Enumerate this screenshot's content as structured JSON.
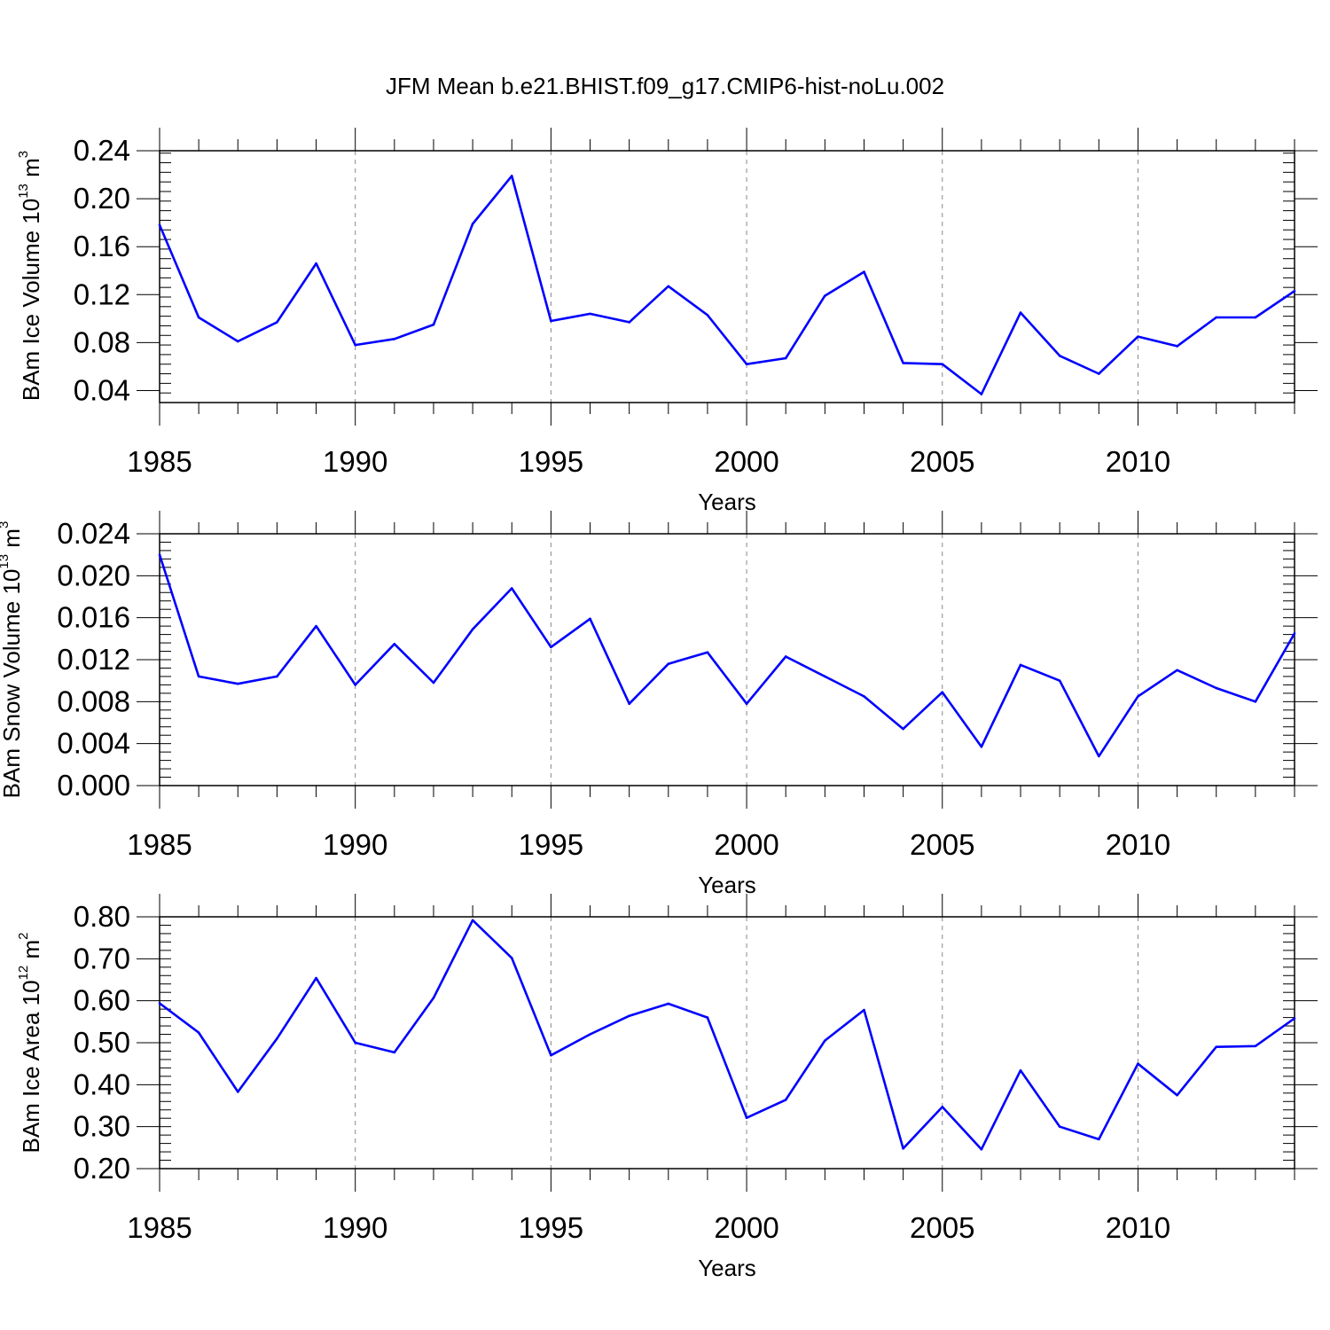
{
  "figure": {
    "title": "JFM Mean b.e21.BHIST.f09_g17.CMIP6-hist-noLu.002"
  },
  "chart_data": [
    {
      "type": "line",
      "title": "JFM Mean b.e21.BHIST.f09_g17.CMIP6-hist-noLu.002",
      "xlabel": "Years",
      "ylabel": {
        "prefix": "BAm Ice Volume 10",
        "exponent": "13",
        "unit_base": " m",
        "unit_exponent": "3"
      },
      "xlim": [
        1985,
        2014
      ],
      "ylim": [
        0.03,
        0.24
      ],
      "x_ticks": [
        1985,
        1990,
        1995,
        2000,
        2005,
        2010
      ],
      "x_tick_labels": [
        "1985",
        "1990",
        "1995",
        "2000",
        "2005",
        "2010"
      ],
      "y_ticks": [
        0.04,
        0.08,
        0.12,
        0.16,
        0.2,
        0.24
      ],
      "y_tick_labels": [
        "0.04",
        "0.08",
        "0.12",
        "0.16",
        "0.20",
        "0.24"
      ],
      "grid": "vertical dashed at major x ticks",
      "line_color": "#0000ff",
      "series": [
        {
          "name": "BAm Ice Volume",
          "x": [
            1985,
            1986,
            1987,
            1988,
            1989,
            1990,
            1991,
            1992,
            1993,
            1994,
            1995,
            1996,
            1997,
            1998,
            1999,
            2000,
            2001,
            2002,
            2003,
            2004,
            2005,
            2006,
            2007,
            2008,
            2009,
            2010,
            2011,
            2012,
            2013,
            2014
          ],
          "values": [
            0.178,
            0.101,
            0.081,
            0.097,
            0.146,
            0.078,
            0.083,
            0.095,
            0.179,
            0.219,
            0.098,
            0.104,
            0.097,
            0.127,
            0.103,
            0.062,
            0.067,
            0.119,
            0.139,
            0.063,
            0.062,
            0.037,
            0.105,
            0.069,
            0.054,
            0.085,
            0.077,
            0.101,
            0.101,
            0.123
          ]
        }
      ]
    },
    {
      "type": "line",
      "title": "",
      "xlabel": "Years",
      "ylabel": {
        "prefix": "BAm Snow Volume 10",
        "exponent": "13",
        "unit_base": " m",
        "unit_exponent": "3"
      },
      "xlim": [
        1985,
        2014
      ],
      "ylim": [
        0.0,
        0.024
      ],
      "x_ticks": [
        1985,
        1990,
        1995,
        2000,
        2005,
        2010
      ],
      "x_tick_labels": [
        "1985",
        "1990",
        "1995",
        "2000",
        "2005",
        "2010"
      ],
      "y_ticks": [
        0.0,
        0.004,
        0.008,
        0.012,
        0.016,
        0.02,
        0.024
      ],
      "y_tick_labels": [
        "0.000",
        "0.004",
        "0.008",
        "0.012",
        "0.016",
        "0.020",
        "0.024"
      ],
      "grid": "vertical dashed at major x ticks",
      "line_color": "#0000ff",
      "series": [
        {
          "name": "BAm Snow Volume",
          "x": [
            1985,
            1986,
            1987,
            1988,
            1989,
            1990,
            1991,
            1992,
            1993,
            1994,
            1995,
            1996,
            1997,
            1998,
            1999,
            2000,
            2001,
            2002,
            2003,
            2004,
            2005,
            2006,
            2007,
            2008,
            2009,
            2010,
            2011,
            2012,
            2013,
            2014
          ],
          "values": [
            0.022,
            0.0104,
            0.0097,
            0.0104,
            0.0152,
            0.0096,
            0.0135,
            0.0098,
            0.0149,
            0.0188,
            0.0132,
            0.0159,
            0.0078,
            0.0116,
            0.0127,
            0.0078,
            0.0123,
            0.0104,
            0.0085,
            0.0054,
            0.0089,
            0.0037,
            0.0115,
            0.01,
            0.0028,
            0.0085,
            0.011,
            0.0093,
            0.008,
            0.0145
          ]
        }
      ]
    },
    {
      "type": "line",
      "title": "",
      "xlabel": "Years",
      "ylabel": {
        "prefix": "BAm Ice Area 10",
        "exponent": "12",
        "unit_base": " m",
        "unit_exponent": "2"
      },
      "xlim": [
        1985,
        2014
      ],
      "ylim": [
        0.2,
        0.8
      ],
      "x_ticks": [
        1985,
        1990,
        1995,
        2000,
        2005,
        2010
      ],
      "x_tick_labels": [
        "1985",
        "1990",
        "1995",
        "2000",
        "2005",
        "2010"
      ],
      "y_ticks": [
        0.2,
        0.3,
        0.4,
        0.5,
        0.6,
        0.7,
        0.8
      ],
      "y_tick_labels": [
        "0.20",
        "0.30",
        "0.40",
        "0.50",
        "0.60",
        "0.70",
        "0.80"
      ],
      "grid": "vertical dashed at major x ticks",
      "line_color": "#0000ff",
      "series": [
        {
          "name": "BAm Ice Area",
          "x": [
            1985,
            1986,
            1987,
            1988,
            1989,
            1990,
            1991,
            1992,
            1993,
            1994,
            1995,
            1996,
            1997,
            1998,
            1999,
            2000,
            2001,
            2002,
            2003,
            2004,
            2005,
            2006,
            2007,
            2008,
            2009,
            2010,
            2011,
            2012,
            2013,
            2014
          ],
          "values": [
            0.594,
            0.524,
            0.383,
            0.51,
            0.654,
            0.5,
            0.477,
            0.607,
            0.792,
            0.702,
            0.47,
            0.52,
            0.564,
            0.593,
            0.56,
            0.321,
            0.364,
            0.505,
            0.578,
            0.248,
            0.347,
            0.246,
            0.434,
            0.3,
            0.27,
            0.45,
            0.375,
            0.49,
            0.492,
            0.558
          ]
        }
      ]
    }
  ]
}
